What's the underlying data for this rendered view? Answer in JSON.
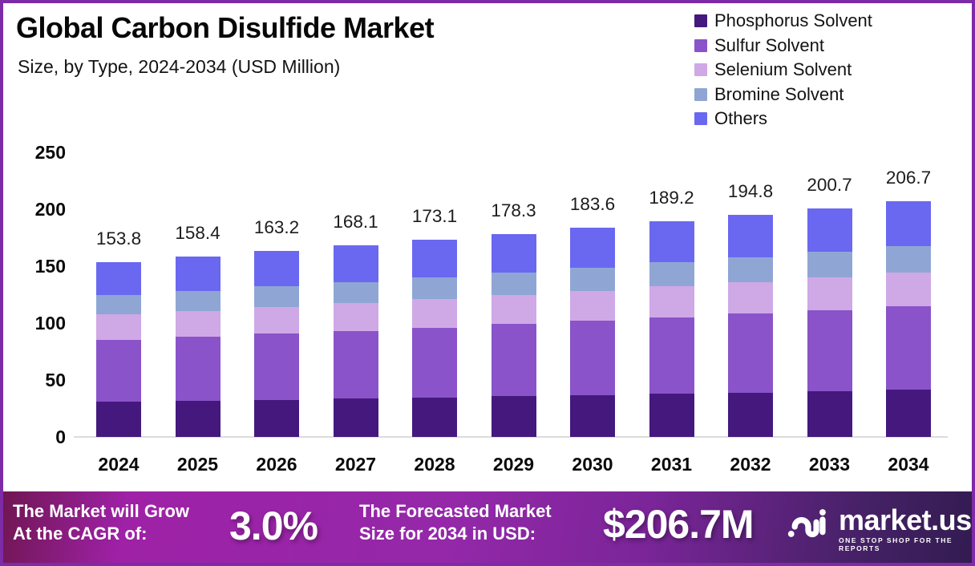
{
  "frame": {
    "border_color": "#7d2ba6",
    "background": "#ffffff"
  },
  "header": {
    "title": "Global Carbon Disulfide Market",
    "subtitle": "Size, by Type, 2024-2034 (USD Million)"
  },
  "legend": {
    "items": [
      {
        "label": "Phosphorus Solvent",
        "color": "#45187e"
      },
      {
        "label": "Sulfur Solvent",
        "color": "#8a53c9"
      },
      {
        "label": "Selenium Solvent",
        "color": "#cfa8e6"
      },
      {
        "label": "Bromine Solvent",
        "color": "#8fa6d4"
      },
      {
        "label": "Others",
        "color": "#6a68f0"
      }
    ]
  },
  "chart_data": {
    "type": "bar",
    "stacked": true,
    "title": "Global Carbon Disulfide Market",
    "subtitle": "Size, by Type, 2024-2034 (USD Million)",
    "unit": "USD Million",
    "categories": [
      "2024",
      "2025",
      "2026",
      "2027",
      "2028",
      "2029",
      "2030",
      "2031",
      "2032",
      "2033",
      "2034"
    ],
    "totals": [
      153.8,
      158.4,
      163.2,
      168.1,
      173.1,
      178.3,
      183.6,
      189.2,
      194.8,
      200.7,
      206.7
    ],
    "series": [
      {
        "name": "Phosphorus Solvent",
        "color": "#45187e",
        "values": [
          30.8,
          31.7,
          32.6,
          33.6,
          34.6,
          35.7,
          36.7,
          37.8,
          39.0,
          40.1,
          41.3
        ]
      },
      {
        "name": "Sulfur Solvent",
        "color": "#8a53c9",
        "values": [
          54.6,
          56.2,
          57.9,
          59.7,
          61.5,
          63.3,
          65.2,
          67.2,
          69.2,
          71.2,
          73.4
        ]
      },
      {
        "name": "Selenium Solvent",
        "color": "#cfa8e6",
        "values": [
          22.0,
          22.7,
          23.3,
          24.0,
          24.7,
          25.5,
          26.3,
          27.1,
          27.9,
          28.7,
          29.6
        ]
      },
      {
        "name": "Bromine Solvent",
        "color": "#8fa6d4",
        "values": [
          17.2,
          17.7,
          18.3,
          18.8,
          19.4,
          20.0,
          20.6,
          21.2,
          21.8,
          22.5,
          23.1
        ]
      },
      {
        "name": "Others",
        "color": "#6a68f0",
        "values": [
          29.2,
          30.1,
          31.1,
          32.0,
          32.9,
          33.8,
          34.8,
          35.9,
          36.9,
          38.2,
          39.3
        ]
      }
    ],
    "y_ticks": [
      250,
      200,
      150,
      100,
      50,
      0
    ],
    "ylim": [
      0,
      250
    ],
    "grid": false,
    "legend_position": "top-right"
  },
  "footer": {
    "cagr_label_line1": "The Market will Grow",
    "cagr_label_line2": "At the CAGR of:",
    "cagr_value": "3.0%",
    "forecast_label_line1": "The Forecasted Market",
    "forecast_label_line2": "Size for 2034 in USD:",
    "forecast_value": "$206.7M",
    "brand_name": "market.us",
    "brand_tagline": "ONE STOP SHOP FOR THE REPORTS"
  }
}
